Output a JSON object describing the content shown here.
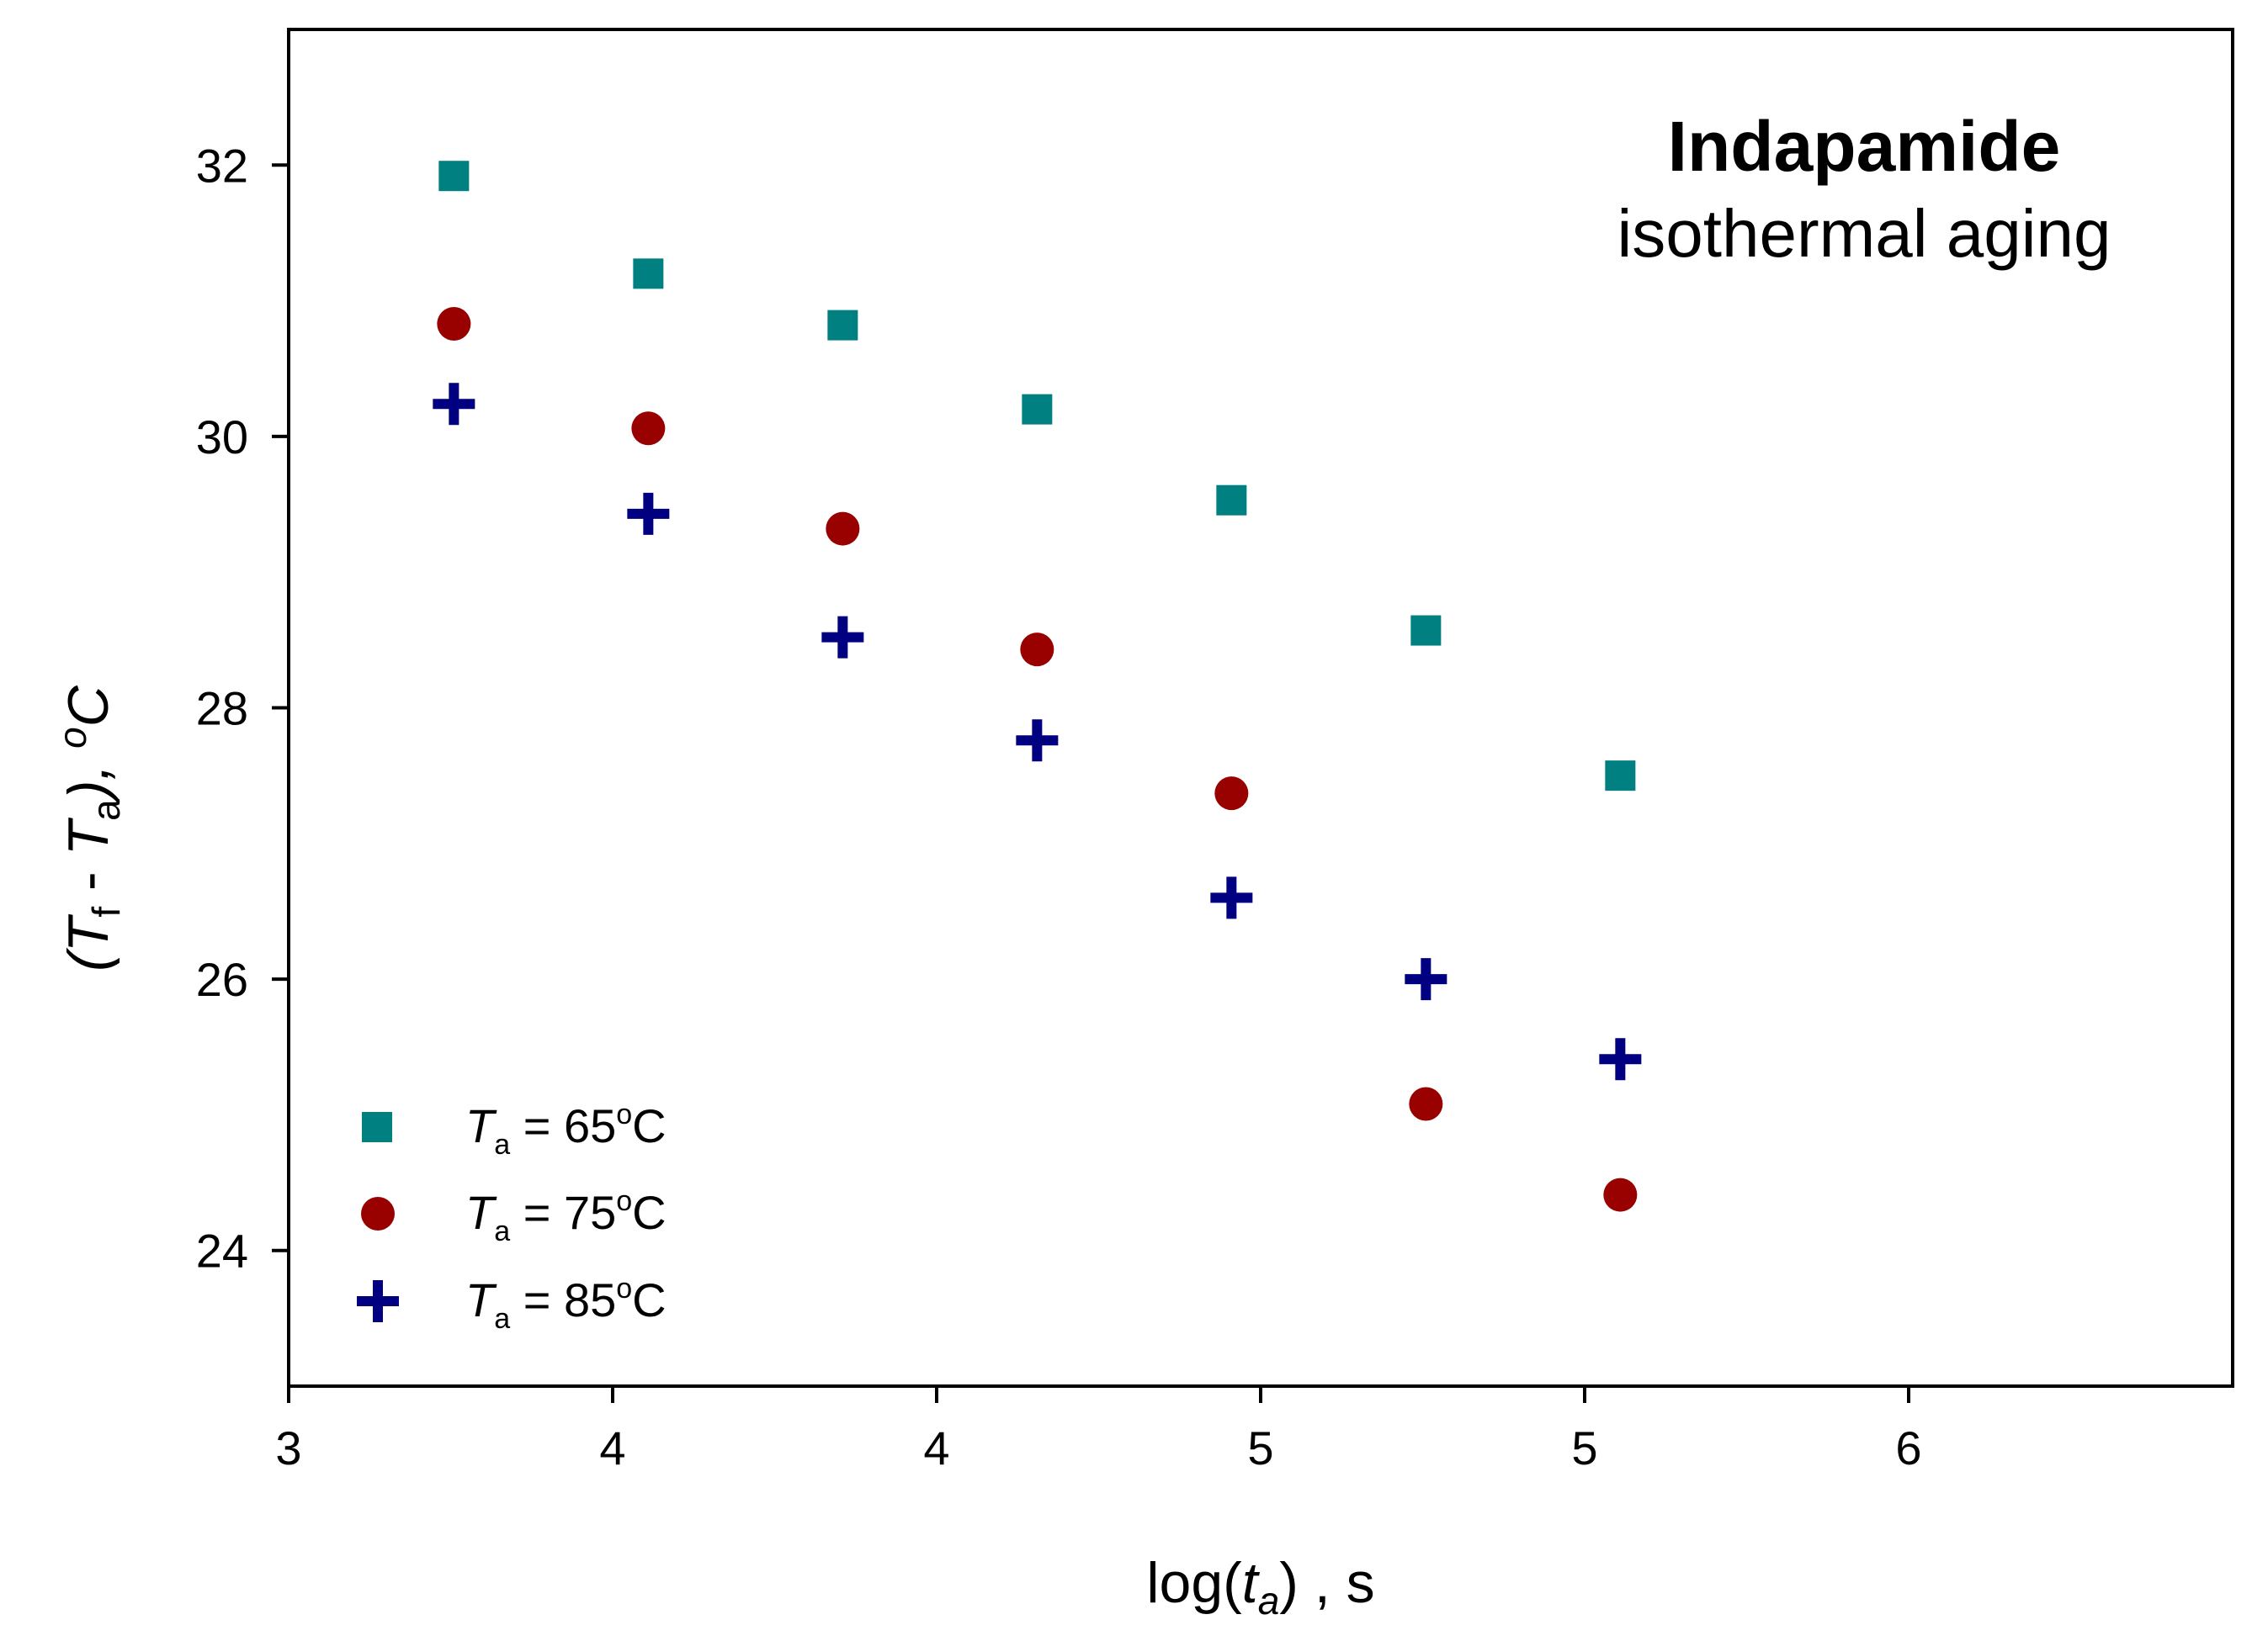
{
  "chart_data": {
    "type": "scatter",
    "title": "Indapamide",
    "subtitle": "isothermal aging",
    "xlabel": {
      "prefix": "log(",
      "var": "t",
      "sub": "a",
      "suffix": ") , s"
    },
    "ylabel": {
      "open": "(",
      "var1": "T",
      "sub1": "f",
      "minus": " - ",
      "var2": "T",
      "sub2": "a",
      "close": "), ",
      "sup": "o",
      "unit": "C"
    },
    "xlim": [
      3,
      6
    ],
    "ylim": [
      23,
      33
    ],
    "x_ticks": [
      3,
      3.5,
      4,
      4.5,
      5,
      5.5
    ],
    "x_tick_labels": [
      "3",
      "4",
      "4",
      "5",
      "5",
      "6"
    ],
    "y_ticks": [
      24,
      26,
      28,
      30,
      32
    ],
    "y_tick_labels": [
      "24",
      "26",
      "28",
      "30",
      "32"
    ],
    "x": [
      3.255,
      3.555,
      3.855,
      4.155,
      4.455,
      4.755,
      5.055
    ],
    "series": [
      {
        "name": "65",
        "label_var": "T",
        "label_sub": "a",
        "label_eq": " = 65",
        "label_sup": "o",
        "label_unit": "C",
        "marker": "square",
        "color": "#008080",
        "values": [
          31.92,
          31.2,
          30.82,
          30.2,
          29.53,
          28.57,
          27.5
        ]
      },
      {
        "name": "75",
        "label_var": "T",
        "label_sub": "a",
        "label_eq": " = 75",
        "label_sup": "o",
        "label_unit": "C",
        "marker": "circle",
        "color": "#990000",
        "values": [
          30.83,
          30.06,
          29.32,
          28.43,
          27.37,
          25.08,
          24.41
        ]
      },
      {
        "name": "85",
        "label_var": "T",
        "label_sub": "a",
        "label_eq": " = 85",
        "label_sup": "o",
        "label_unit": "C",
        "marker": "plus",
        "color": "#000080",
        "values": [
          30.24,
          29.43,
          28.52,
          27.76,
          26.6,
          26.0,
          25.41
        ]
      }
    ],
    "legend_position": "bottom-left"
  }
}
